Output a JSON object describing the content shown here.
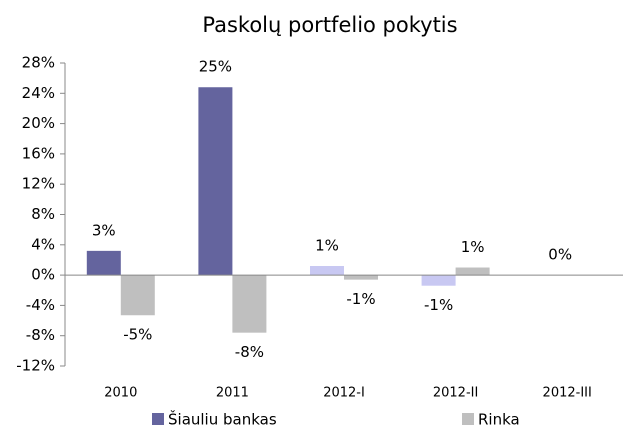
{
  "chart_data": {
    "type": "bar",
    "title": "Paskolų portfelio pokytis",
    "categories": [
      "2010",
      "2011",
      "2012-I",
      "2012-II",
      "2012-III"
    ],
    "series": [
      {
        "name": "Šiauliu bankas",
        "color": "#64649e",
        "colors": [
          "#64649e",
          "#64649e",
          "#c8c8f2",
          "#c8c8f2",
          "#c8c8f2"
        ],
        "values": [
          3.2,
          24.8,
          1.2,
          -1.4,
          0
        ],
        "value_labels": [
          "3%",
          "25%",
          "1%",
          "-1%",
          "0%"
        ]
      },
      {
        "name": "Rinka",
        "color": "#bfbfbf",
        "values": [
          -5.3,
          -7.6,
          -0.6,
          1.0,
          null
        ],
        "value_labels": [
          "-5%",
          "-8%",
          "-1%",
          "1%",
          null
        ]
      }
    ],
    "ylim": [
      -12,
      28
    ],
    "yticks": [
      {
        "value": -12,
        "label": "-12%"
      },
      {
        "value": -8,
        "label": "-8%"
      },
      {
        "value": -4,
        "label": "-4%"
      },
      {
        "value": 0,
        "label": "0%"
      },
      {
        "value": 4,
        "label": "4%"
      },
      {
        "value": 8,
        "label": "8%"
      },
      {
        "value": 12,
        "label": "12%"
      },
      {
        "value": 16,
        "label": "16%"
      },
      {
        "value": 20,
        "label": "20%"
      },
      {
        "value": 24,
        "label": "24%"
      },
      {
        "value": 28,
        "label": "28%"
      }
    ],
    "grid": false
  }
}
